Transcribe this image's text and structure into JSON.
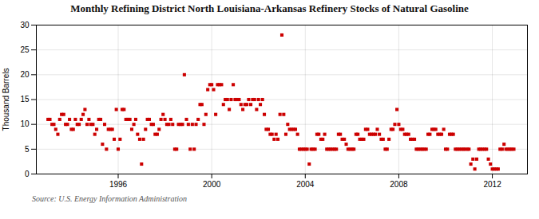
{
  "chart_data": {
    "type": "scatter",
    "title": "Monthly Refining District North Louisiana-Arkansas Refinery Stocks of Natural Gasoline",
    "ylabel": "Thousand Barrels",
    "source": "Source: U.S. Energy Information Administration",
    "color": "#cc0000",
    "marker": "square",
    "grid": true,
    "xlim": [
      1992.5,
      2013.5
    ],
    "xticks": [
      1996,
      2000,
      2004,
      2008,
      2012
    ],
    "ylim": [
      0,
      30
    ],
    "yticks": [
      0,
      5,
      10,
      15,
      20,
      25,
      30
    ],
    "x": [
      1993.0,
      1993.08,
      1993.17,
      1993.25,
      1993.33,
      1993.42,
      1993.5,
      1993.58,
      1993.67,
      1993.75,
      1993.83,
      1993.92,
      1994.0,
      1994.08,
      1994.17,
      1994.25,
      1994.33,
      1994.42,
      1994.5,
      1994.58,
      1994.67,
      1994.75,
      1994.83,
      1994.92,
      1995.0,
      1995.08,
      1995.17,
      1995.25,
      1995.33,
      1995.42,
      1995.5,
      1995.58,
      1995.67,
      1995.75,
      1995.83,
      1995.92,
      1996.0,
      1996.08,
      1996.17,
      1996.25,
      1996.33,
      1996.42,
      1996.5,
      1996.58,
      1996.67,
      1996.75,
      1996.83,
      1996.92,
      1997.0,
      1997.08,
      1997.17,
      1997.25,
      1997.33,
      1997.42,
      1997.5,
      1997.58,
      1997.67,
      1997.75,
      1997.83,
      1997.92,
      1998.0,
      1998.08,
      1998.17,
      1998.25,
      1998.33,
      1998.42,
      1998.5,
      1998.58,
      1998.67,
      1998.75,
      1998.83,
      1998.92,
      1999.0,
      1999.08,
      1999.17,
      1999.25,
      1999.33,
      1999.42,
      1999.5,
      1999.58,
      1999.67,
      1999.75,
      1999.83,
      1999.92,
      2000.0,
      2000.08,
      2000.17,
      2000.25,
      2000.33,
      2000.42,
      2000.5,
      2000.58,
      2000.67,
      2000.75,
      2000.83,
      2000.92,
      2001.0,
      2001.08,
      2001.17,
      2001.25,
      2001.33,
      2001.42,
      2001.5,
      2001.58,
      2001.67,
      2001.75,
      2001.83,
      2001.92,
      2002.0,
      2002.08,
      2002.17,
      2002.25,
      2002.33,
      2002.42,
      2002.5,
      2002.58,
      2002.67,
      2002.75,
      2002.83,
      2002.92,
      2003.0,
      2003.08,
      2003.17,
      2003.25,
      2003.33,
      2003.42,
      2003.5,
      2003.58,
      2003.67,
      2003.75,
      2003.83,
      2003.92,
      2004.0,
      2004.08,
      2004.17,
      2004.25,
      2004.33,
      2004.42,
      2004.5,
      2004.58,
      2004.67,
      2004.75,
      2004.83,
      2004.92,
      2005.0,
      2005.08,
      2005.17,
      2005.25,
      2005.33,
      2005.42,
      2005.5,
      2005.58,
      2005.67,
      2005.75,
      2005.83,
      2005.92,
      2006.0,
      2006.08,
      2006.17,
      2006.25,
      2006.33,
      2006.42,
      2006.5,
      2006.58,
      2006.67,
      2006.75,
      2006.83,
      2006.92,
      2007.0,
      2007.08,
      2007.17,
      2007.25,
      2007.33,
      2007.42,
      2007.5,
      2007.58,
      2007.67,
      2007.75,
      2007.83,
      2007.92,
      2008.0,
      2008.08,
      2008.17,
      2008.25,
      2008.33,
      2008.42,
      2008.5,
      2008.58,
      2008.67,
      2008.75,
      2008.83,
      2008.92,
      2009.0,
      2009.08,
      2009.17,
      2009.25,
      2009.33,
      2009.42,
      2009.5,
      2009.58,
      2009.67,
      2009.75,
      2009.83,
      2009.92,
      2010.0,
      2010.08,
      2010.17,
      2010.25,
      2010.33,
      2010.42,
      2010.5,
      2010.58,
      2010.67,
      2010.75,
      2010.83,
      2010.92,
      2011.0,
      2011.08,
      2011.17,
      2011.25,
      2011.33,
      2011.42,
      2011.5,
      2011.58,
      2011.67,
      2011.75,
      2011.83,
      2011.92,
      2012.0,
      2012.08,
      2012.17,
      2012.25,
      2012.33,
      2012.42,
      2012.5,
      2012.58,
      2012.67,
      2012.75,
      2012.83,
      2012.92
    ],
    "values": [
      11,
      11,
      10,
      10,
      9,
      8,
      11,
      12,
      12,
      10,
      10,
      11,
      9,
      9,
      11,
      10,
      10,
      11,
      12,
      13,
      10,
      11,
      10,
      10,
      8,
      9,
      11,
      11,
      6,
      10,
      5,
      9,
      9,
      9,
      7,
      13,
      5,
      7,
      13,
      13,
      11,
      11,
      11,
      9,
      10,
      11,
      8,
      7,
      2,
      7,
      9,
      11,
      11,
      10,
      10,
      8,
      8,
      9,
      11,
      12,
      11,
      10,
      10,
      11,
      10,
      5,
      5,
      10,
      10,
      10,
      20,
      11,
      10,
      5,
      10,
      5,
      10,
      11,
      14,
      14,
      10,
      12,
      17,
      18,
      18,
      17,
      12,
      18,
      18,
      18,
      14,
      15,
      15,
      13,
      15,
      18,
      15,
      15,
      15,
      14,
      13,
      14,
      14,
      15,
      14,
      15,
      15,
      13,
      15,
      14,
      15,
      12,
      9,
      9,
      8,
      8,
      7,
      8,
      7,
      12,
      28,
      12,
      8,
      10,
      9,
      9,
      9,
      9,
      8,
      5,
      5,
      5,
      5,
      5,
      2,
      5,
      5,
      5,
      8,
      8,
      7,
      7,
      8,
      5,
      5,
      5,
      5,
      5,
      5,
      8,
      8,
      7,
      7,
      6,
      5,
      5,
      5,
      5,
      8,
      8,
      7,
      7,
      7,
      9,
      9,
      8,
      8,
      8,
      8,
      9,
      8,
      7,
      7,
      5,
      5,
      7,
      9,
      9,
      10,
      13,
      10,
      9,
      9,
      8,
      8,
      8,
      7,
      7,
      7,
      5,
      5,
      5,
      5,
      5,
      5,
      8,
      8,
      9,
      9,
      9,
      8,
      8,
      8,
      9,
      5,
      5,
      8,
      8,
      8,
      5,
      5,
      5,
      5,
      5,
      5,
      5,
      5,
      2,
      3,
      1,
      3,
      5,
      5,
      5,
      5,
      5,
      3,
      2,
      1,
      1,
      1,
      1,
      5,
      5,
      6,
      5,
      5,
      5,
      5,
      5
    ]
  }
}
